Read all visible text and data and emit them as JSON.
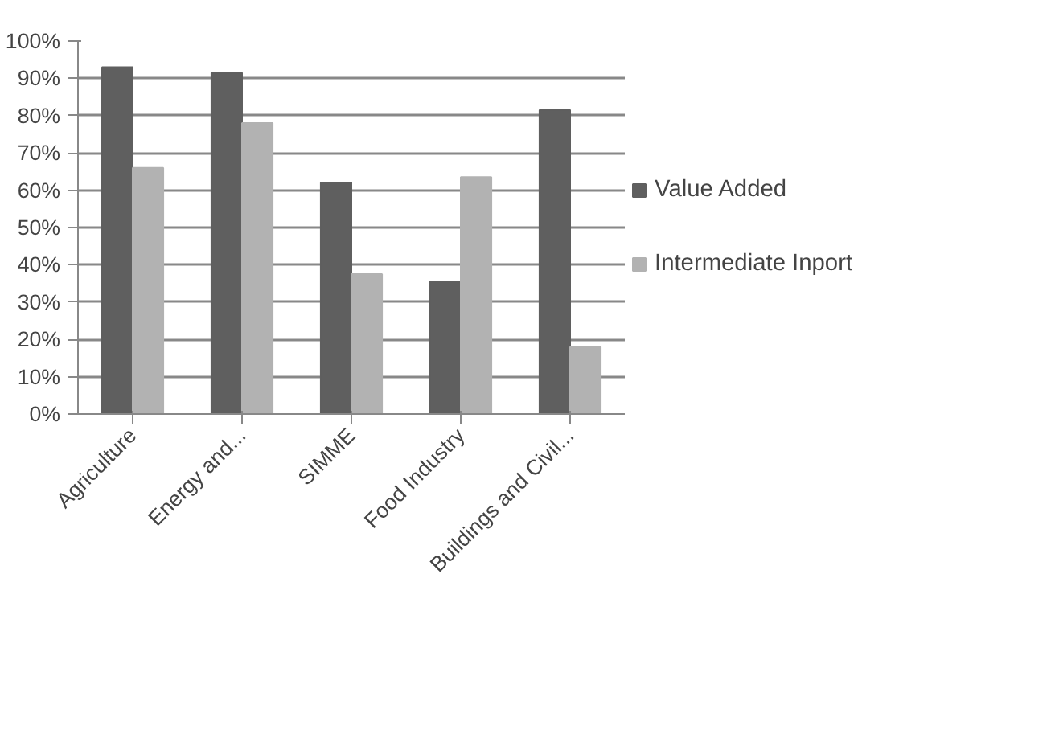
{
  "chart_data": {
    "type": "bar",
    "categories": [
      "Agriculture",
      "Energy and...",
      "SIMME",
      "Food Industry",
      "Buildings and Civil..."
    ],
    "series": [
      {
        "name": "Value Added",
        "color": "#5f5f5f",
        "values": [
          93,
          91.5,
          62,
          35.5,
          81.5
        ]
      },
      {
        "name": "Intermediate Inport",
        "color": "#b2b2b2",
        "values": [
          66,
          78,
          37.5,
          63.5,
          18
        ]
      }
    ],
    "ylim": [
      0,
      100
    ],
    "yticks": [
      {
        "value": 0,
        "label": "0%"
      },
      {
        "value": 10,
        "label": "10%"
      },
      {
        "value": 20,
        "label": "20%"
      },
      {
        "value": 30,
        "label": "30%"
      },
      {
        "value": 40,
        "label": "40%"
      },
      {
        "value": 50,
        "label": "50%"
      },
      {
        "value": 60,
        "label": "60%"
      },
      {
        "value": 70,
        "label": "70%"
      },
      {
        "value": 80,
        "label": "80%"
      },
      {
        "value": 90,
        "label": "90%"
      },
      {
        "value": 100,
        "label": "100%"
      }
    ],
    "grid": "y",
    "legend": "right"
  }
}
